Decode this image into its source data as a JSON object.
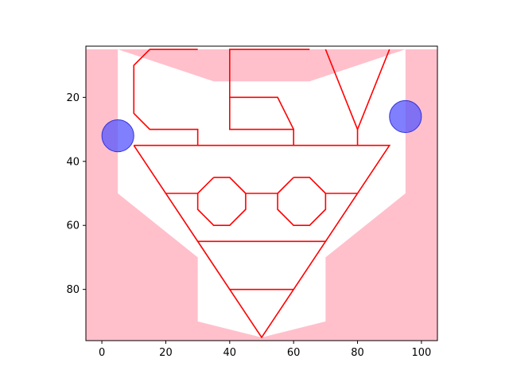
{
  "chart_data": {
    "type": "scatter",
    "title": "",
    "xlabel": "",
    "ylabel": "",
    "xlim": [
      -5,
      105
    ],
    "ylim": [
      96,
      4
    ],
    "y_inverted": true,
    "grid": false,
    "xticks": [
      0,
      20,
      40,
      60,
      80,
      100
    ],
    "yticks": [
      20,
      40,
      60,
      80
    ],
    "xtick_labels": [
      "0",
      "20",
      "40",
      "60",
      "80",
      "100"
    ],
    "ytick_labels": [
      "20",
      "40",
      "60",
      "80"
    ],
    "colors": {
      "background_region": "#ffc0cb",
      "face_fill": "#ffffff",
      "lines": "#ff0000",
      "points": "#5555ff",
      "points_edge": "#3333dd"
    },
    "background_region": {
      "x": [
        -5,
        105
      ],
      "y": [
        5,
        96
      ]
    },
    "face_polygon": [
      [
        5,
        5
      ],
      [
        35,
        15
      ],
      [
        65,
        15
      ],
      [
        95,
        5
      ],
      [
        95,
        50
      ],
      [
        70,
        70
      ],
      [
        70,
        90
      ],
      [
        50,
        95
      ],
      [
        30,
        90
      ],
      [
        30,
        70
      ],
      [
        5,
        50
      ]
    ],
    "line_paths": [
      {
        "name": "C",
        "points": [
          [
            30,
            5
          ],
          [
            15,
            5
          ],
          [
            10,
            10
          ],
          [
            10,
            25
          ],
          [
            15,
            30
          ],
          [
            30,
            30
          ],
          [
            30,
            35
          ]
        ]
      },
      {
        "name": "E-stem",
        "points": [
          [
            65,
            5
          ],
          [
            40,
            5
          ],
          [
            40,
            30
          ],
          [
            60,
            30
          ],
          [
            60,
            35
          ]
        ]
      },
      {
        "name": "E-middle",
        "points": [
          [
            40,
            20
          ],
          [
            55,
            20
          ],
          [
            60,
            30
          ]
        ]
      },
      {
        "name": "Y",
        "points": [
          [
            70,
            5
          ],
          [
            80,
            30
          ],
          [
            90,
            5
          ]
        ]
      },
      {
        "name": "Y-stem",
        "points": [
          [
            80,
            30
          ],
          [
            80,
            35
          ]
        ]
      },
      {
        "name": "triangle",
        "points": [
          [
            10,
            35
          ],
          [
            90,
            35
          ],
          [
            50,
            95
          ],
          [
            10,
            35
          ]
        ]
      },
      {
        "name": "left-eye",
        "points": [
          [
            35,
            45
          ],
          [
            40,
            45
          ],
          [
            45,
            50
          ],
          [
            45,
            55
          ],
          [
            40,
            60
          ],
          [
            35,
            60
          ],
          [
            30,
            55
          ],
          [
            30,
            50
          ],
          [
            35,
            45
          ]
        ]
      },
      {
        "name": "right-eye",
        "points": [
          [
            60,
            45
          ],
          [
            65,
            45
          ],
          [
            70,
            50
          ],
          [
            70,
            55
          ],
          [
            65,
            60
          ],
          [
            60,
            60
          ],
          [
            55,
            55
          ],
          [
            55,
            50
          ],
          [
            60,
            45
          ]
        ]
      },
      {
        "name": "brow-left",
        "points": [
          [
            20,
            50
          ],
          [
            30,
            50
          ]
        ]
      },
      {
        "name": "brow-bridge",
        "points": [
          [
            45,
            50
          ],
          [
            55,
            50
          ]
        ]
      },
      {
        "name": "brow-right",
        "points": [
          [
            70,
            50
          ],
          [
            80,
            50
          ]
        ]
      },
      {
        "name": "mouth-upper",
        "points": [
          [
            30,
            65
          ],
          [
            70,
            65
          ]
        ]
      },
      {
        "name": "mouth-lower",
        "points": [
          [
            40,
            80
          ],
          [
            60,
            80
          ]
        ]
      }
    ],
    "points": [
      {
        "x": 5,
        "y": 32,
        "r": 5
      },
      {
        "x": 95,
        "y": 26,
        "r": 5
      }
    ]
  }
}
